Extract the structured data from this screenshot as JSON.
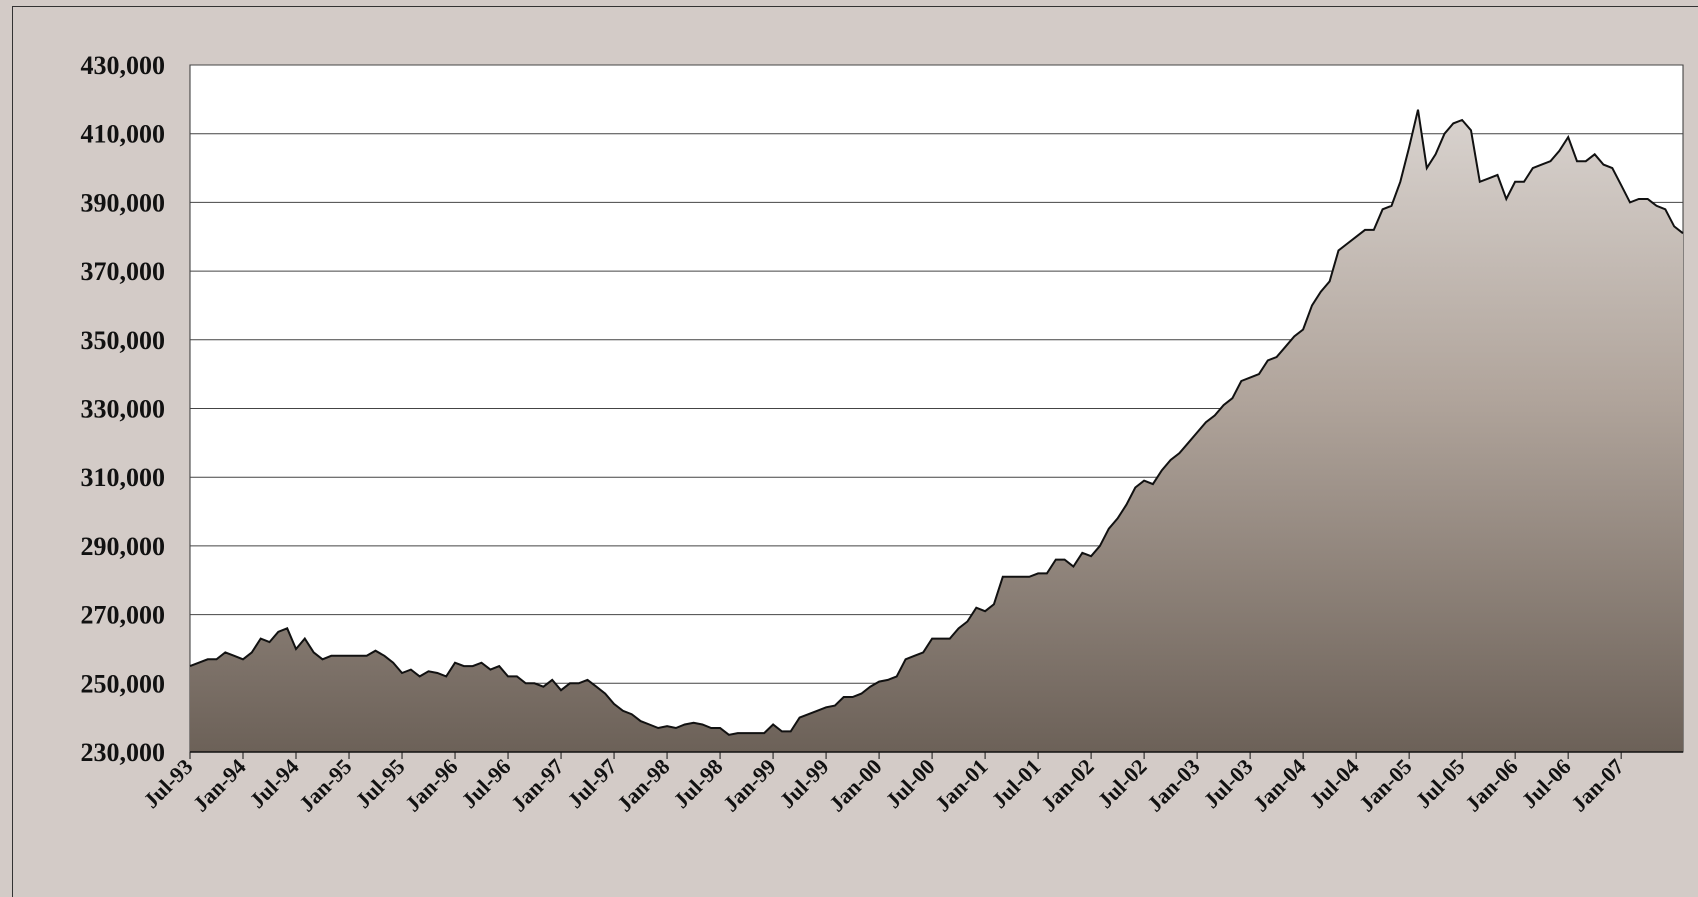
{
  "chart_data": {
    "type": "area",
    "categories": [
      "Jul-93",
      null,
      null,
      null,
      null,
      null,
      "Jan-94",
      null,
      null,
      null,
      null,
      null,
      "Jul-94",
      null,
      null,
      null,
      null,
      null,
      "Jan-95",
      null,
      null,
      null,
      null,
      null,
      "Jul-95",
      null,
      null,
      null,
      null,
      null,
      "Jan-96",
      null,
      null,
      null,
      null,
      null,
      "Jul-96",
      null,
      null,
      null,
      null,
      null,
      "Jan-97",
      null,
      null,
      null,
      null,
      null,
      "Jul-97",
      null,
      null,
      null,
      null,
      null,
      "Jan-98",
      null,
      null,
      null,
      null,
      null,
      "Jul-98",
      null,
      null,
      null,
      null,
      null,
      "Jan-99",
      null,
      null,
      null,
      null,
      null,
      "Jul-99",
      null,
      null,
      null,
      null,
      null,
      "Jan-00",
      null,
      null,
      null,
      null,
      null,
      "Jul-00",
      null,
      null,
      null,
      null,
      null,
      "Jan-01",
      null,
      null,
      null,
      null,
      null,
      "Jul-01",
      null,
      null,
      null,
      null,
      null,
      "Jan-02",
      null,
      null,
      null,
      null,
      null,
      "Jul-02",
      null,
      null,
      null,
      null,
      null,
      "Jan-03",
      null,
      null,
      null,
      null,
      null,
      "Jul-03",
      null,
      null,
      null,
      null,
      null,
      "Jan-04",
      null,
      null,
      null,
      null,
      null,
      "Jul-04",
      null,
      null,
      null,
      null,
      null,
      "Jan-05",
      null,
      null,
      null,
      null,
      null,
      "Jul-05",
      null,
      null,
      null,
      null,
      null,
      "Jan-06",
      null,
      null,
      null,
      null,
      null,
      "Jul-06",
      null,
      null,
      null,
      null,
      null,
      "Jan-07",
      null,
      null,
      null,
      null,
      null,
      null,
      null
    ],
    "values": [
      255000,
      256000,
      257000,
      257000,
      259000,
      258000,
      257000,
      259000,
      263000,
      262000,
      265000,
      266000,
      260000,
      263000,
      259000,
      257000,
      258000,
      258000,
      258000,
      258000,
      258000,
      259500,
      258000,
      256000,
      253000,
      254000,
      252000,
      253500,
      253000,
      252000,
      256000,
      255000,
      255000,
      256000,
      254000,
      255000,
      252000,
      252000,
      250000,
      250000,
      249000,
      251000,
      248000,
      250000,
      250000,
      251000,
      249000,
      247000,
      244000,
      242000,
      241000,
      239000,
      238000,
      237000,
      237500,
      237000,
      238000,
      238500,
      238000,
      237000,
      237000,
      235000,
      235500,
      235500,
      235500,
      235500,
      238000,
      236000,
      236000,
      240000,
      241000,
      242000,
      243000,
      243500,
      246000,
      246000,
      247000,
      249000,
      250500,
      251000,
      252000,
      257000,
      258000,
      259000,
      263000,
      263000,
      263000,
      266000,
      268000,
      272000,
      271000,
      273000,
      281000,
      281000,
      281000,
      281000,
      282000,
      282000,
      286000,
      286000,
      284000,
      288000,
      287000,
      290000,
      295000,
      298000,
      302000,
      307000,
      309000,
      308000,
      312000,
      315000,
      317000,
      320000,
      323000,
      326000,
      328000,
      331000,
      333000,
      338000,
      339000,
      340000,
      344000,
      345000,
      348000,
      351000,
      353000,
      360000,
      364000,
      367000,
      376000,
      378000,
      380000,
      382000,
      382000,
      388000,
      389000,
      396000,
      406000,
      417000,
      400000,
      404000,
      410000,
      413000,
      414000,
      411000,
      396000,
      397000,
      398000,
      391000,
      396000,
      396000,
      400000,
      401000,
      402000,
      405000,
      409000,
      402000,
      402000,
      404000,
      401000,
      400000,
      395000,
      390000,
      391000,
      391000,
      389000,
      388000,
      383000,
      381000
    ],
    "ylim": [
      230000,
      430000
    ],
    "yticks": [
      {
        "value": 230000,
        "label": "230,000"
      },
      {
        "value": 250000,
        "label": "250,000"
      },
      {
        "value": 270000,
        "label": "270,000"
      },
      {
        "value": 290000,
        "label": "290,000"
      },
      {
        "value": 310000,
        "label": "310,000"
      },
      {
        "value": 330000,
        "label": "330,000"
      },
      {
        "value": 350000,
        "label": "350,000"
      },
      {
        "value": 370000,
        "label": "370,000"
      },
      {
        "value": 390000,
        "label": "390,000"
      },
      {
        "value": 410000,
        "label": "410,000"
      },
      {
        "value": 430000,
        "label": "430,000"
      }
    ],
    "grid": true,
    "color": "#7a6e65"
  }
}
